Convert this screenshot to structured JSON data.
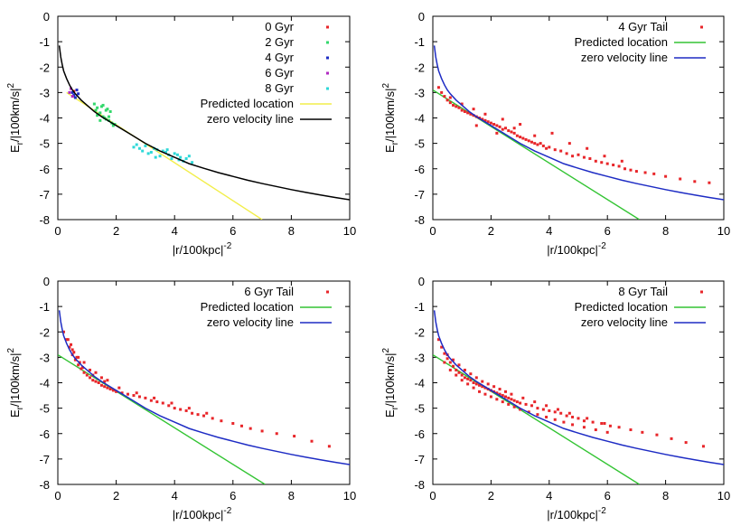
{
  "chart_data": [
    {
      "type": "scatter",
      "id": "p0",
      "xlim": [
        0,
        10
      ],
      "ylim": [
        -8,
        0
      ],
      "xticks": [
        "0",
        "2",
        "4",
        "6",
        "8",
        "10"
      ],
      "yticks": [
        "0",
        "-1",
        "-2",
        "-3",
        "-4",
        "-5",
        "-6",
        "-7",
        "-8"
      ],
      "xlabel": {
        "base": "|r/100kpc|",
        "sup": "-2"
      },
      "ylabel": {
        "E": "E",
        "sub": "r",
        "rest": "/|100km/s|",
        "sup": "2"
      },
      "zero_velocity": {
        "name": "zero velocity line",
        "color": "#000000",
        "x": [
          0.05,
          0.1,
          0.15,
          0.2,
          0.3,
          0.4,
          0.5,
          0.6,
          0.8,
          1,
          1.25,
          1.5,
          2,
          2.5,
          3,
          3.5,
          4,
          4.5,
          5,
          5.5,
          6,
          6.5,
          7,
          7.5,
          8,
          8.5,
          9,
          9.5,
          10
        ],
        "y": [
          -1.15,
          -1.6,
          -1.9,
          -2.15,
          -2.45,
          -2.7,
          -2.9,
          -3.05,
          -3.3,
          -3.5,
          -3.75,
          -3.95,
          -4.3,
          -4.65,
          -5.0,
          -5.3,
          -5.55,
          -5.8,
          -5.98,
          -6.15,
          -6.3,
          -6.45,
          -6.58,
          -6.7,
          -6.82,
          -6.93,
          -7.03,
          -7.13,
          -7.22
        ]
      },
      "predicted": {
        "name": "Predicted location",
        "color": "#f2ee4a",
        "x": [
          0.3,
          7.0
        ],
        "y": [
          -3.0,
          -8.0
        ]
      },
      "series": [
        {
          "name": "0 Gyr",
          "color": "#e8262a",
          "x": [
            0.55
          ],
          "y": [
            -2.95
          ]
        },
        {
          "name": "2 Gyr",
          "color": "#33d86c",
          "x": [
            1.25,
            1.35,
            1.45,
            1.55,
            1.65,
            1.75,
            1.85,
            1.3,
            1.5,
            1.7,
            1.9,
            1.4,
            1.6,
            1.8,
            1.35,
            1.55,
            1.75,
            1.45,
            1.65,
            1.95
          ],
          "y": [
            -3.45,
            -3.6,
            -3.8,
            -3.95,
            -4.05,
            -4.1,
            -4.2,
            -3.7,
            -3.55,
            -3.65,
            -4.3,
            -3.85,
            -4.0,
            -3.75,
            -3.9,
            -3.5,
            -3.95,
            -4.1,
            -3.7,
            -4.25
          ]
        },
        {
          "name": "4 Gyr",
          "color": "#1e2cc4",
          "x": [
            0.5,
            0.6,
            0.65,
            0.55,
            0.7
          ],
          "y": [
            -3.0,
            -3.2,
            -2.9,
            -3.1,
            -3.05
          ]
        },
        {
          "name": "6 Gyr",
          "color": "#b02ac2",
          "x": [
            0.4,
            0.45,
            0.5
          ],
          "y": [
            -3.0,
            -2.85,
            -3.15
          ]
        },
        {
          "name": "8 Gyr",
          "color": "#2ed8d8",
          "x": [
            2.6,
            2.8,
            3.0,
            3.2,
            3.4,
            3.6,
            3.8,
            4.0,
            4.2,
            4.4,
            4.6,
            2.9,
            3.1,
            3.3,
            3.5,
            3.7,
            3.9,
            4.1,
            4.3,
            2.7,
            3.35,
            3.75,
            4.15,
            4.5
          ],
          "y": [
            -5.15,
            -5.2,
            -5.1,
            -5.35,
            -5.25,
            -5.3,
            -5.45,
            -5.4,
            -5.55,
            -5.6,
            -5.75,
            -5.3,
            -5.4,
            -5.2,
            -5.5,
            -5.35,
            -5.6,
            -5.45,
            -5.7,
            -5.05,
            -5.55,
            -5.25,
            -5.65,
            -5.5
          ]
        }
      ],
      "legend_entries": [
        "0 Gyr",
        "2 Gyr",
        "4 Gyr",
        "6 Gyr",
        "8 Gyr",
        "Predicted location",
        "zero velocity line"
      ]
    },
    {
      "type": "scatter",
      "id": "p1",
      "xlim": [
        0,
        10
      ],
      "ylim": [
        -8,
        0
      ],
      "xticks": [
        "0",
        "2",
        "4",
        "6",
        "8",
        "10"
      ],
      "yticks": [
        "0",
        "-1",
        "-2",
        "-3",
        "-4",
        "-5",
        "-6",
        "-7",
        "-8"
      ],
      "xlabel": {
        "base": "|r/100kpc|",
        "sup": "-2"
      },
      "ylabel": {
        "E": "E",
        "sub": "r",
        "rest": "/|100km/s|",
        "sup": "2"
      },
      "zero_velocity": {
        "name": "zero velocity line",
        "color": "#1e2cc4",
        "x": [
          0.05,
          0.1,
          0.15,
          0.2,
          0.3,
          0.4,
          0.5,
          0.6,
          0.8,
          1,
          1.25,
          1.5,
          2,
          2.5,
          3,
          3.5,
          4,
          4.5,
          5,
          5.5,
          6,
          6.5,
          7,
          7.5,
          8,
          8.5,
          9,
          9.5,
          10
        ],
        "y": [
          -1.15,
          -1.6,
          -1.9,
          -2.15,
          -2.45,
          -2.7,
          -2.9,
          -3.05,
          -3.3,
          -3.5,
          -3.75,
          -3.95,
          -4.3,
          -4.65,
          -5.0,
          -5.3,
          -5.55,
          -5.8,
          -5.98,
          -6.15,
          -6.3,
          -6.45,
          -6.58,
          -6.7,
          -6.82,
          -6.93,
          -7.03,
          -7.13,
          -7.22
        ]
      },
      "predicted": {
        "name": "Predicted location",
        "color": "#33c433",
        "x": [
          0.0,
          7.1
        ],
        "y": [
          -2.9,
          -8.0
        ]
      },
      "series": [
        {
          "name": "4 Gyr Tail",
          "color": "#e8262a",
          "x": [
            0.2,
            0.3,
            0.4,
            0.5,
            0.6,
            0.7,
            0.8,
            0.9,
            1.0,
            1.1,
            1.2,
            1.3,
            1.4,
            1.5,
            1.6,
            1.7,
            1.8,
            1.9,
            2.0,
            2.1,
            2.2,
            2.3,
            2.4,
            2.5,
            2.6,
            2.7,
            2.8,
            2.9,
            3.0,
            3.1,
            3.2,
            3.3,
            3.4,
            3.5,
            3.6,
            3.7,
            3.8,
            3.9,
            4.0,
            4.2,
            4.4,
            4.6,
            4.8,
            5.0,
            5.2,
            5.4,
            5.6,
            5.8,
            6.0,
            6.2,
            6.4,
            6.6,
            6.8,
            7.0,
            7.3,
            7.6,
            8.0,
            8.5,
            9.0,
            9.5,
            1.5,
            2.2,
            2.8,
            3.5,
            4.1,
            4.7,
            5.3,
            5.9,
            6.5,
            0.6,
            1.0,
            1.4,
            1.8,
            2.4,
            3.0
          ],
          "y": [
            -2.8,
            -3.0,
            -3.15,
            -3.3,
            -3.4,
            -3.5,
            -3.55,
            -3.6,
            -3.7,
            -3.75,
            -3.8,
            -3.85,
            -3.9,
            -3.95,
            -4.0,
            -4.05,
            -4.1,
            -4.15,
            -4.2,
            -4.25,
            -4.3,
            -4.35,
            -4.45,
            -4.4,
            -4.5,
            -4.55,
            -4.6,
            -4.7,
            -4.75,
            -4.8,
            -4.85,
            -4.9,
            -4.95,
            -5.0,
            -5.05,
            -5.0,
            -5.1,
            -5.2,
            -5.15,
            -5.25,
            -5.3,
            -5.4,
            -5.5,
            -5.45,
            -5.55,
            -5.6,
            -5.7,
            -5.75,
            -5.8,
            -5.85,
            -5.9,
            -6.0,
            -6.05,
            -6.1,
            -6.15,
            -6.2,
            -6.3,
            -6.4,
            -6.5,
            -6.55,
            -4.3,
            -4.6,
            -4.4,
            -4.7,
            -4.6,
            -5.0,
            -5.2,
            -5.5,
            -5.7,
            -3.2,
            -3.45,
            -3.65,
            -3.85,
            -4.05,
            -4.25
          ]
        }
      ],
      "legend_entries": [
        "4 Gyr Tail",
        "Predicted location",
        "zero velocity line"
      ]
    },
    {
      "type": "scatter",
      "id": "p2",
      "xlim": [
        0,
        10
      ],
      "ylim": [
        -8,
        0
      ],
      "xticks": [
        "0",
        "2",
        "4",
        "6",
        "8",
        "10"
      ],
      "yticks": [
        "0",
        "-1",
        "-2",
        "-3",
        "-4",
        "-5",
        "-6",
        "-7",
        "-8"
      ],
      "xlabel": {
        "base": "|r/100kpc|",
        "sup": "-2"
      },
      "ylabel": {
        "E": "E",
        "sub": "r",
        "rest": "/|100km/s|",
        "sup": "2"
      },
      "zero_velocity": {
        "name": "zero velocity line",
        "color": "#1e2cc4",
        "x": [
          0.05,
          0.1,
          0.15,
          0.2,
          0.3,
          0.4,
          0.5,
          0.6,
          0.8,
          1,
          1.25,
          1.5,
          2,
          2.5,
          3,
          3.5,
          4,
          4.5,
          5,
          5.5,
          6,
          6.5,
          7,
          7.5,
          8,
          8.5,
          9,
          9.5,
          10
        ],
        "y": [
          -1.15,
          -1.6,
          -1.9,
          -2.15,
          -2.45,
          -2.7,
          -2.9,
          -3.05,
          -3.3,
          -3.5,
          -3.75,
          -3.95,
          -4.3,
          -4.65,
          -5.0,
          -5.3,
          -5.55,
          -5.8,
          -5.98,
          -6.15,
          -6.3,
          -6.45,
          -6.58,
          -6.7,
          -6.82,
          -6.93,
          -7.03,
          -7.13,
          -7.22
        ]
      },
      "predicted": {
        "name": "Predicted location",
        "color": "#33c433",
        "x": [
          0.0,
          7.1
        ],
        "y": [
          -2.9,
          -8.0
        ]
      },
      "series": [
        {
          "name": "6 Gyr Tail",
          "color": "#e8262a",
          "x": [
            0.2,
            0.3,
            0.4,
            0.5,
            0.6,
            0.7,
            0.8,
            0.9,
            1.0,
            1.1,
            1.2,
            1.3,
            1.4,
            1.5,
            1.6,
            1.7,
            1.8,
            1.9,
            2.0,
            2.2,
            2.4,
            2.6,
            2.8,
            3.0,
            3.2,
            3.4,
            3.6,
            3.8,
            4.0,
            4.2,
            4.4,
            4.6,
            4.8,
            5.0,
            5.3,
            5.6,
            6.0,
            6.3,
            6.6,
            7.0,
            7.5,
            8.1,
            8.7,
            9.3,
            0.5,
            0.7,
            0.9,
            1.1,
            1.3,
            1.5,
            1.7,
            0.35,
            0.45,
            0.55,
            0.65,
            0.75,
            0.85,
            1.2,
            1.6,
            2.1,
            2.7,
            3.3,
            3.9,
            4.5,
            5.1
          ],
          "y": [
            -2.0,
            -2.3,
            -2.6,
            -2.9,
            -3.1,
            -3.3,
            -3.45,
            -3.6,
            -3.7,
            -3.8,
            -3.9,
            -3.95,
            -4.0,
            -4.1,
            -4.15,
            -4.2,
            -4.25,
            -4.3,
            -4.35,
            -4.4,
            -4.45,
            -4.5,
            -4.55,
            -4.6,
            -4.7,
            -4.75,
            -4.8,
            -4.9,
            -5.0,
            -5.05,
            -5.1,
            -5.2,
            -5.25,
            -5.3,
            -5.4,
            -5.5,
            -5.6,
            -5.7,
            -5.8,
            -5.9,
            -6.0,
            -6.1,
            -6.3,
            -6.5,
            -2.7,
            -3.0,
            -3.2,
            -3.5,
            -3.6,
            -3.8,
            -3.9,
            -2.3,
            -2.5,
            -2.8,
            -3.0,
            -3.2,
            -3.4,
            -3.7,
            -3.95,
            -4.2,
            -4.4,
            -4.6,
            -4.8,
            -5.0,
            -5.2
          ]
        }
      ],
      "legend_entries": [
        "6 Gyr Tail",
        "Predicted location",
        "zero velocity line"
      ]
    },
    {
      "type": "scatter",
      "id": "p3",
      "xlim": [
        0,
        10
      ],
      "ylim": [
        -8,
        0
      ],
      "xticks": [
        "0",
        "2",
        "4",
        "6",
        "8",
        "10"
      ],
      "yticks": [
        "0",
        "-1",
        "-2",
        "-3",
        "-4",
        "-5",
        "-6",
        "-7",
        "-8"
      ],
      "xlabel": {
        "base": "|r/100kpc|",
        "sup": "-2"
      },
      "ylabel": {
        "E": "E",
        "sub": "r",
        "rest": "/|100km/s|",
        "sup": "2"
      },
      "zero_velocity": {
        "name": "zero velocity line",
        "color": "#1e2cc4",
        "x": [
          0.05,
          0.1,
          0.15,
          0.2,
          0.3,
          0.4,
          0.5,
          0.6,
          0.8,
          1,
          1.25,
          1.5,
          2,
          2.5,
          3,
          3.5,
          4,
          4.5,
          5,
          5.5,
          6,
          6.5,
          7,
          7.5,
          8,
          8.5,
          9,
          9.5,
          10
        ],
        "y": [
          -1.15,
          -1.6,
          -1.9,
          -2.15,
          -2.45,
          -2.7,
          -2.9,
          -3.05,
          -3.3,
          -3.5,
          -3.75,
          -3.95,
          -4.3,
          -4.65,
          -5.0,
          -5.3,
          -5.55,
          -5.8,
          -5.98,
          -6.15,
          -6.3,
          -6.45,
          -6.58,
          -6.7,
          -6.82,
          -6.93,
          -7.03,
          -7.13,
          -7.22
        ]
      },
      "predicted": {
        "name": "Predicted location",
        "color": "#33c433",
        "x": [
          0.0,
          7.1
        ],
        "y": [
          -2.9,
          -8.0
        ]
      },
      "series": [
        {
          "name": "8 Gyr Tail",
          "color": "#e8262a",
          "x": [
            0.2,
            0.3,
            0.4,
            0.5,
            0.6,
            0.7,
            0.8,
            0.9,
            1.0,
            1.1,
            1.2,
            1.3,
            1.4,
            1.5,
            1.6,
            1.7,
            1.8,
            1.9,
            2.0,
            2.1,
            2.2,
            2.3,
            2.4,
            2.5,
            2.6,
            2.7,
            2.8,
            2.9,
            3.0,
            3.2,
            3.4,
            3.6,
            3.8,
            4.0,
            4.2,
            4.4,
            4.6,
            4.8,
            5.0,
            5.2,
            5.5,
            5.8,
            6.1,
            6.4,
            6.8,
            7.2,
            7.7,
            8.2,
            8.7,
            9.3,
            0.4,
            0.6,
            0.8,
            1.0,
            1.2,
            1.4,
            1.6,
            1.8,
            2.0,
            2.2,
            2.4,
            2.6,
            2.8,
            3.0,
            3.3,
            3.6,
            3.9,
            4.2,
            4.5,
            4.8,
            5.2,
            5.6,
            6.0,
            0.5,
            0.7,
            0.9,
            1.1,
            1.3,
            1.5,
            1.7,
            1.9,
            2.1,
            2.3,
            2.5,
            2.7,
            3.1,
            3.5,
            3.9,
            4.3,
            4.7,
            5.3,
            5.9
          ],
          "y": [
            -2.3,
            -2.6,
            -2.85,
            -3.05,
            -3.2,
            -3.35,
            -3.5,
            -3.6,
            -3.7,
            -3.8,
            -3.85,
            -3.9,
            -4.0,
            -4.05,
            -4.1,
            -4.15,
            -4.2,
            -4.25,
            -4.3,
            -4.35,
            -4.4,
            -4.45,
            -4.5,
            -4.55,
            -4.6,
            -4.65,
            -4.7,
            -4.75,
            -4.8,
            -4.85,
            -4.9,
            -5.0,
            -5.05,
            -5.1,
            -5.15,
            -5.2,
            -5.3,
            -5.35,
            -5.4,
            -5.5,
            -5.55,
            -5.6,
            -5.7,
            -5.75,
            -5.85,
            -5.95,
            -6.05,
            -6.2,
            -6.35,
            -6.5,
            -3.2,
            -3.5,
            -3.7,
            -3.9,
            -4.05,
            -4.2,
            -4.35,
            -4.45,
            -4.55,
            -4.65,
            -4.75,
            -4.85,
            -4.95,
            -5.05,
            -5.15,
            -5.25,
            -5.35,
            -5.45,
            -5.55,
            -5.65,
            -5.75,
            -5.85,
            -5.95,
            -2.9,
            -3.1,
            -3.3,
            -3.5,
            -3.65,
            -3.8,
            -3.95,
            -4.05,
            -4.15,
            -4.25,
            -4.35,
            -4.45,
            -4.6,
            -4.75,
            -4.9,
            -5.05,
            -5.2,
            -5.4,
            -5.6
          ]
        }
      ],
      "legend_entries": [
        "8 Gyr Tail",
        "Predicted location",
        "zero velocity line"
      ]
    }
  ]
}
